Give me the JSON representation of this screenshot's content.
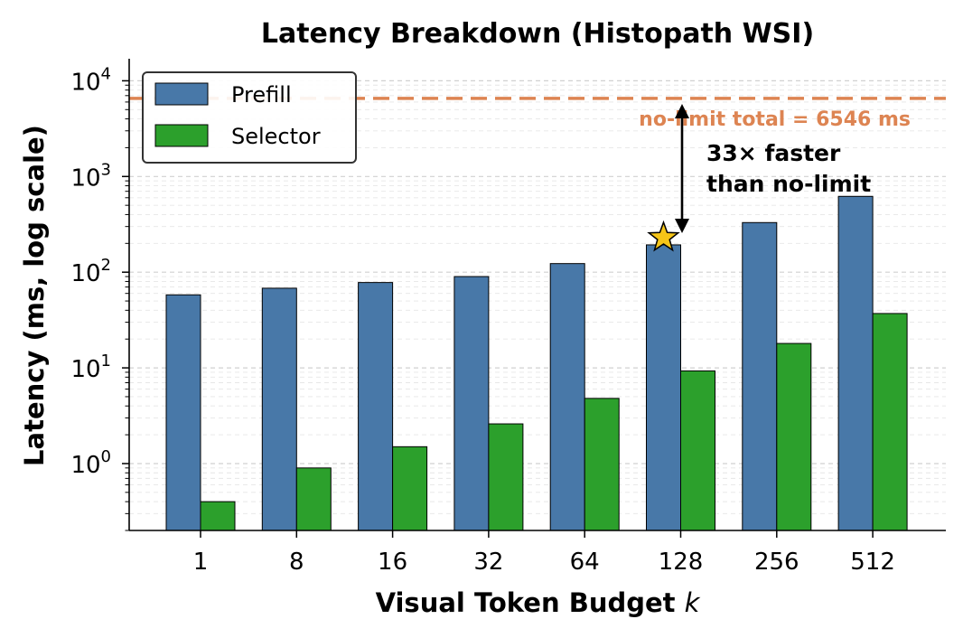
{
  "chart_data": {
    "type": "bar",
    "title": "Latency Breakdown (Histopath WSI)",
    "xlabel_main": "Visual Token Budget ",
    "xlabel_var": "k",
    "ylabel": "Latency (ms, log scale)",
    "yscale": "log",
    "ylim": [
      0.2,
      17000
    ],
    "ytick_base": "10",
    "yticks": [
      {
        "value": 1,
        "exp": "0"
      },
      {
        "value": 10,
        "exp": "1"
      },
      {
        "value": 100,
        "exp": "2"
      },
      {
        "value": 1000,
        "exp": "3"
      },
      {
        "value": 10000,
        "exp": "4"
      }
    ],
    "categories": [
      "1",
      "8",
      "16",
      "32",
      "64",
      "128",
      "256",
      "512"
    ],
    "series": [
      {
        "name": "Prefill",
        "color": "#4878a8",
        "values": [
          58,
          68,
          78,
          90,
          123,
          193,
          330,
          620
        ]
      },
      {
        "name": "Selector",
        "color": "#2ca02c",
        "values": [
          0.4,
          0.9,
          1.5,
          2.6,
          4.8,
          9.3,
          18,
          37
        ]
      }
    ],
    "legend_position": "top-left",
    "grid": "y-major-and-minor",
    "reference_line": {
      "value": 6546,
      "color": "#dd8452",
      "label": "no-limit total = 6546 ms"
    },
    "highlight": {
      "category": "128",
      "marker": "star",
      "color": "#f5c518"
    },
    "annotation": {
      "line1": "33× faster",
      "line2": "than no-limit"
    }
  }
}
